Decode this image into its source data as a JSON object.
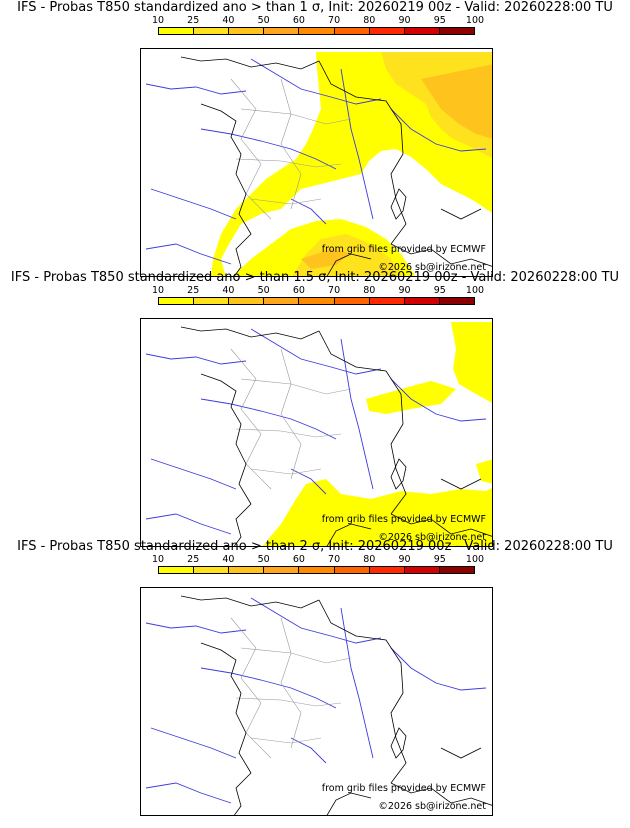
{
  "colors": {
    "scale": [
      "#ffff00",
      "#ffe21e",
      "#ffc31e",
      "#ffa51e",
      "#ff8a00",
      "#ff6400",
      "#ff2800",
      "#d20000",
      "#8c0000",
      "#500000"
    ],
    "coast": "#000000",
    "border": "#9a9a9a",
    "river": "#3c3cdc"
  },
  "scale_labels": [
    "10",
    "25",
    "40",
    "50",
    "60",
    "70",
    "80",
    "90",
    "95",
    "100"
  ],
  "panels": [
    {
      "title": "IFS - Probas T850  standardized ano > than 1 σ, Init: 20260219 00z - Valid: 20260228:00 TU",
      "credit_source": "from grib files provided by ECMWF",
      "credit_copyright": "©2026 sb@irizone.net",
      "probability_coverage": "widespread"
    },
    {
      "title": "IFS - Probas T850  standardized ano > than 1.5 σ, Init: 20260219 00z - Valid: 20260228:00 TU",
      "credit_source": "from grib files provided by ECMWF",
      "credit_copyright": "©2026 sb@irizone.net",
      "probability_coverage": "limited"
    },
    {
      "title": "IFS - Probas T850  standardized ano > than 2 σ, Init: 20260219 00z - Valid: 20260228:00 TU",
      "credit_source": "from grib files provided by ECMWF",
      "credit_copyright": "©2026 sb@irizone.net",
      "probability_coverage": "none"
    }
  ]
}
